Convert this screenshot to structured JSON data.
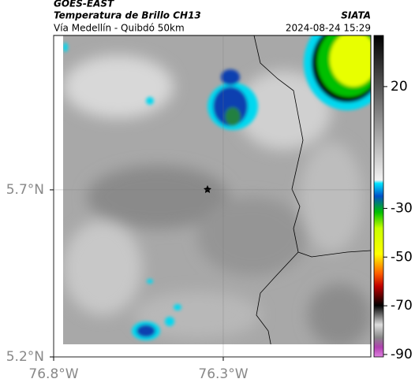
{
  "header": {
    "title": "GOES-EAST",
    "subtitle": "Temperatura de Brillo CH13",
    "route": "Vía Medellín - Quibdó 50km",
    "source": "SIATA",
    "timestamp": "2024-08-24 15:29"
  },
  "map": {
    "xlim": [
      -76.8,
      -75.865
    ],
    "ylim": [
      5.2,
      6.162
    ],
    "xticks": [
      {
        "value": -76.8,
        "label": "76.8°W"
      },
      {
        "value": -76.3,
        "label": "76.3°W"
      }
    ],
    "yticks": [
      {
        "value": 5.7,
        "label": "5.7°N"
      },
      {
        "value": 5.2,
        "label": "5.2°N"
      }
    ]
  },
  "colorbar": {
    "lim": [
      41,
      -91
    ],
    "ticks": [
      20,
      -30,
      -50,
      -70,
      -90
    ]
  }
}
